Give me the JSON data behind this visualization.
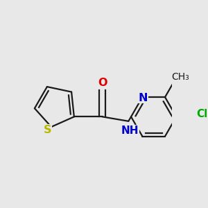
{
  "background_color": "#e8e8e8",
  "bond_color": "#1a1a1a",
  "atom_colors": {
    "S": "#b8b800",
    "O": "#dd0000",
    "N": "#0000cc",
    "Cl": "#00aa00",
    "C": "#1a1a1a",
    "H": "#1a1a1a"
  },
  "font_size": 10.5,
  "bond_width": 1.6,
  "figsize": [
    3.0,
    3.0
  ],
  "dpi": 100
}
